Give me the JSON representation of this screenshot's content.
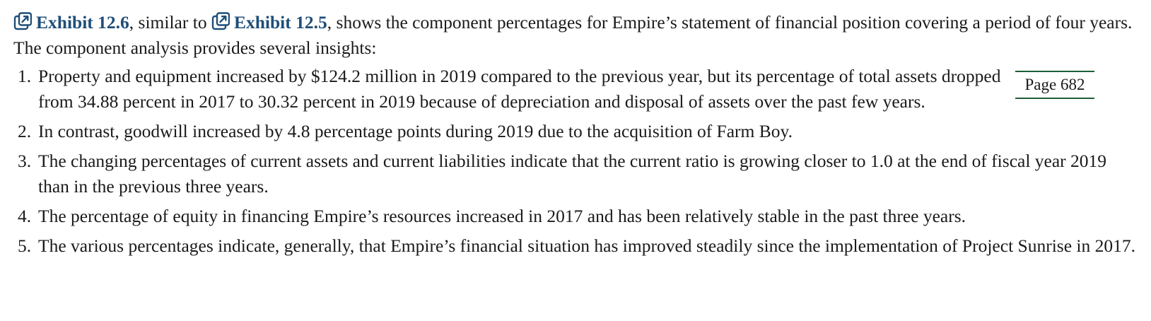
{
  "intro": {
    "link1_label": "Exhibit 12.6",
    "text_between_links": ", similar to ",
    "link2_label": "Exhibit 12.5",
    "text_after": ", shows the component percentages for Empire’s statement of financial position covering a period of four years. The component analysis provides several insights:",
    "link_icon": "external-link-icon",
    "link_color": "#1f4e79"
  },
  "page_marker": {
    "label": "Page 682",
    "rule_color": "#1e5e3a"
  },
  "items": [
    {
      "number": "1.",
      "text": "Property and equipment increased by $124.2 million in 2019 compared to the previous year, but its percentage of total assets dropped from 34.88 percent in 2017 to 30.32 percent in 2019 because of depreciation and disposal of assets over the past few years."
    },
    {
      "number": "2.",
      "text": "In contrast, goodwill increased by 4.8 percentage points during 2019 due to the acquisition of Farm Boy."
    },
    {
      "number": "3.",
      "text": "The changing percentages of current assets and current liabilities indicate that the current ratio is growing closer to 1.0 at the end of fiscal year 2019 than in the previous three years."
    },
    {
      "number": "4.",
      "text": "The percentage of equity in financing Empire’s resources increased in 2017 and has been relatively stable in the past three years."
    },
    {
      "number": "5.",
      "text": "The various percentages indicate, generally, that Empire’s financial situation has improved steadily since the implementation of Project Sunrise in 2017."
    }
  ]
}
